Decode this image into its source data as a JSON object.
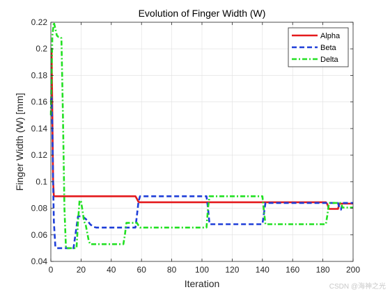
{
  "chart_data": {
    "type": "line",
    "title": "Evolution of Finger Width (W)",
    "xlabel": "Iteration",
    "ylabel": "Finger Width (W) [mm]",
    "xlim": [
      0,
      200
    ],
    "ylim": [
      0.04,
      0.22
    ],
    "xticks": [
      0,
      20,
      40,
      60,
      80,
      100,
      120,
      140,
      160,
      180,
      200
    ],
    "yticks": [
      0.04,
      0.06,
      0.08,
      0.1,
      0.12,
      0.14,
      0.16,
      0.18,
      0.2,
      0.22
    ],
    "xtick_labels": [
      "0",
      "20",
      "40",
      "60",
      "80",
      "100",
      "120",
      "140",
      "160",
      "180",
      "200"
    ],
    "ytick_labels": [
      "0.04",
      "0.06",
      "0.08",
      "0.1",
      "0.12",
      "0.14",
      "0.16",
      "0.18",
      "0.2",
      "0.22"
    ],
    "grid": true,
    "legend_position": "top-right",
    "series": [
      {
        "name": "Alpha",
        "color": "#e41a1c",
        "style": "solid",
        "x": [
          0,
          0.5,
          1,
          1.5,
          2,
          3,
          50,
          56,
          57,
          58,
          59,
          100,
          150,
          182,
          183,
          184,
          185,
          190,
          191,
          192,
          200
        ],
        "y": [
          0.2,
          0.2,
          0.15,
          0.1,
          0.089,
          0.089,
          0.089,
          0.089,
          0.087,
          0.0848,
          0.0845,
          0.0845,
          0.0845,
          0.0845,
          0.083,
          0.0795,
          0.0795,
          0.0795,
          0.0835,
          0.0835,
          0.0835
        ]
      },
      {
        "name": "Beta",
        "color": "#1f3fd8",
        "style": "dashed",
        "x": [
          0,
          0.5,
          1,
          1.5,
          2,
          3,
          4,
          10,
          15,
          16,
          17,
          18,
          20,
          22,
          24,
          26,
          28,
          30,
          56,
          57,
          58,
          59,
          103,
          104,
          105,
          140,
          141,
          142,
          190,
          191,
          192,
          193,
          200
        ],
        "y": [
          0.16,
          0.165,
          0.14,
          0.1,
          0.07,
          0.051,
          0.05,
          0.05,
          0.05,
          0.058,
          0.066,
          0.074,
          0.074,
          0.073,
          0.071,
          0.068,
          0.066,
          0.0655,
          0.0655,
          0.075,
          0.085,
          0.089,
          0.089,
          0.08,
          0.068,
          0.068,
          0.076,
          0.084,
          0.084,
          0.08,
          0.079,
          0.084,
          0.084
        ]
      },
      {
        "name": "Delta",
        "color": "#22e022",
        "style": "dashdot",
        "x": [
          0,
          1,
          2,
          3,
          4,
          5,
          6,
          7,
          8,
          9,
          10,
          17,
          18,
          19,
          20,
          21,
          22,
          23,
          24,
          25,
          26,
          48,
          49,
          50,
          57,
          58,
          59,
          103,
          104,
          105,
          140,
          141,
          142,
          182,
          183,
          184,
          192,
          193,
          200
        ],
        "y": [
          0.15,
          0.21,
          0.22,
          0.215,
          0.21,
          0.209,
          0.209,
          0.208,
          0.15,
          0.08,
          0.05,
          0.05,
          0.07,
          0.086,
          0.085,
          0.078,
          0.07,
          0.068,
          0.062,
          0.056,
          0.053,
          0.053,
          0.06,
          0.069,
          0.069,
          0.067,
          0.0655,
          0.0655,
          0.08,
          0.089,
          0.089,
          0.078,
          0.068,
          0.068,
          0.075,
          0.084,
          0.084,
          0.0805,
          0.0805
        ]
      }
    ]
  },
  "watermark": "CSDN @海神之光"
}
